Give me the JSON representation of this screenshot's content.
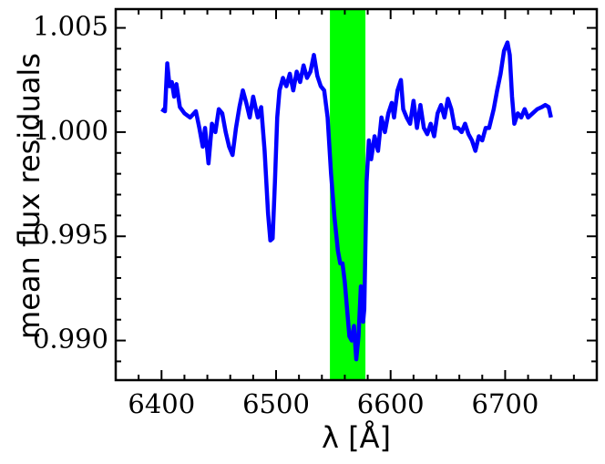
{
  "chart_data": {
    "type": "line",
    "xlabel": "λ [Å]",
    "ylabel": "mean flux residuals",
    "xlim": [
      6360,
      6780
    ],
    "ylim": [
      0.9881,
      1.0059
    ],
    "xticks": [
      6400,
      6500,
      6600,
      6700
    ],
    "yticks": [
      {
        "value": 0.99,
        "label": "0.990"
      },
      0.995,
      {
        "value": 1.0,
        "label": "1.000"
      },
      1.005
    ],
    "xminorticks": [
      6380,
      6420,
      6440,
      6460,
      6480,
      6520,
      6540,
      6560,
      6580,
      6620,
      6640,
      6660,
      6680,
      6720,
      6740,
      6760
    ],
    "yminorticks": [
      0.989,
      0.991,
      0.992,
      0.993,
      0.994,
      0.996,
      0.997,
      0.998,
      0.999,
      1.001,
      1.002,
      1.003,
      1.004
    ],
    "highlight": {
      "xrange": [
        6547,
        6578
      ],
      "color": "#00ff00"
    },
    "color": "#0000ff",
    "x": [
      6400,
      6403,
      6405,
      6407,
      6409,
      6411,
      6413,
      6416,
      6420,
      6425,
      6430,
      6433,
      6436,
      6438,
      6441,
      6444,
      6447,
      6450,
      6453,
      6456,
      6459,
      6462,
      6465,
      6468,
      6471,
      6474,
      6477,
      6480,
      6484,
      6487,
      6490,
      6493,
      6495,
      6497,
      6499,
      6501,
      6503,
      6506,
      6509,
      6512,
      6515,
      6518,
      6521,
      6524,
      6527,
      6530,
      6533,
      6536,
      6539,
      6542,
      6545,
      6548,
      6551,
      6554,
      6556,
      6558,
      6560,
      6562,
      6564,
      6566,
      6568,
      6570,
      6572,
      6574,
      6576,
      6577,
      6579,
      6581,
      6583,
      6586,
      6589,
      6592,
      6595,
      6598,
      6601,
      6603,
      6606,
      6609,
      6611,
      6614,
      6617,
      6620,
      6623,
      6626,
      6629,
      6632,
      6635,
      6638,
      6641,
      6644,
      6647,
      6650,
      6653,
      6656,
      6659,
      6662,
      6665,
      6668,
      6671,
      6674,
      6677,
      6680,
      6683,
      6686,
      6690,
      6693,
      6696,
      6699,
      6702,
      6704,
      6706,
      6708,
      6711,
      6714,
      6717,
      6720,
      6724,
      6728,
      6732,
      6735,
      6738,
      6740
    ],
    "values": [
      1.0011,
      1.001,
      1.0033,
      1.0022,
      1.0024,
      1.0017,
      1.0023,
      1.0012,
      1.0009,
      1.0007,
      1.001,
      1.0002,
      0.9993,
      1.0002,
      0.9985,
      1.0004,
      1.0,
      1.0011,
      1.0009,
      1.0,
      0.9993,
      0.9989,
      1.0002,
      1.0012,
      1.002,
      1.0014,
      1.0007,
      1.0017,
      1.0007,
      1.0012,
      0.9991,
      0.9961,
      0.9948,
      0.9949,
      0.9976,
      1.0007,
      1.002,
      1.0026,
      1.0022,
      1.0028,
      1.002,
      1.0029,
      1.0024,
      1.0032,
      1.0026,
      1.0029,
      1.0037,
      1.0027,
      1.0022,
      1.002,
      1.0007,
      0.998,
      0.9959,
      0.9943,
      0.9937,
      0.9937,
      0.9928,
      0.9915,
      0.9902,
      0.99,
      0.9907,
      0.9891,
      0.9902,
      0.9926,
      0.9909,
      0.9915,
      0.9976,
      0.9996,
      0.9987,
      0.9998,
      0.9991,
      1.0007,
      1.0,
      1.0009,
      1.0014,
      1.0007,
      1.002,
      1.0025,
      1.0011,
      1.0007,
      1.0004,
      1.0015,
      1.0002,
      1.0013,
      1.0002,
      0.9999,
      1.0004,
      0.9998,
      1.0009,
      1.0013,
      1.0007,
      1.0016,
      1.0011,
      1.0002,
      1.0002,
      1.0,
      1.0004,
      0.9999,
      0.9996,
      0.9991,
      0.9998,
      0.9996,
      1.0002,
      1.0002,
      1.0011,
      1.002,
      1.0028,
      1.0039,
      1.0043,
      1.0037,
      1.0017,
      1.0004,
      1.0009,
      1.0007,
      1.0011,
      1.0007,
      1.0009,
      1.0011,
      1.0012,
      1.0013,
      1.0012,
      1.0007
    ]
  }
}
